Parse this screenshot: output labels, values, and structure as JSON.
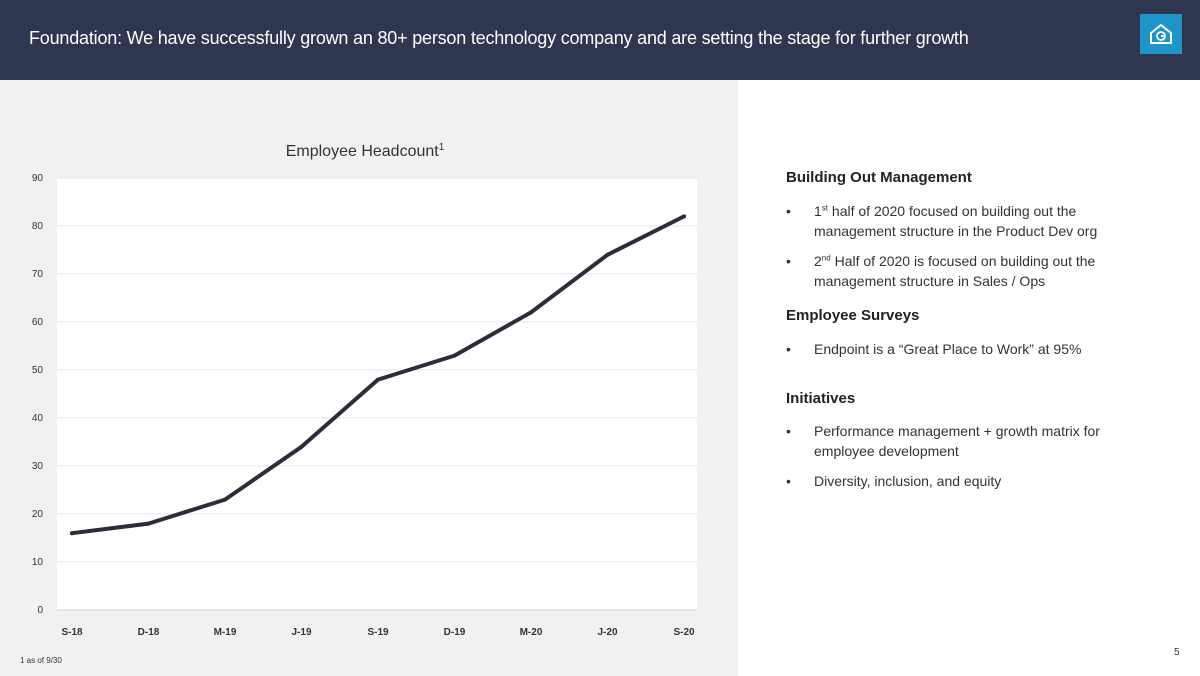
{
  "header": {
    "title": "Foundation: We have successfully grown an 80+ person technology company and are setting the stage for further growth",
    "logo_icon": "house-logo-icon",
    "colors": {
      "background": "#2e3650",
      "logo": "#1f94c9"
    }
  },
  "chart_data": {
    "type": "line",
    "title": "Employee Headcount",
    "title_superscript": "1",
    "categories": [
      "S-18",
      "D-18",
      "M-19",
      "J-19",
      "S-19",
      "D-19",
      "M-20",
      "J-20",
      "S-20"
    ],
    "series": [
      {
        "values": [
          16,
          18,
          23,
          34,
          48,
          53,
          62,
          74,
          82
        ],
        "color": "#2b2d3a"
      }
    ],
    "ylim": [
      0,
      90
    ],
    "yticks": [
      0,
      10,
      20,
      30,
      40,
      50,
      60,
      70,
      80,
      90
    ],
    "grid": true
  },
  "footnote": "1 as of 9/30",
  "page_number": "5",
  "sections": [
    {
      "heading": "Building Out Management",
      "bullets": [
        {
          "ordinal": "1",
          "sup": "st",
          "text": " half of 2020 focused on building out the management structure in the Product Dev org"
        },
        {
          "ordinal": "2",
          "sup": "nd",
          "text": " Half of 2020 is focused on building out the management structure in Sales / Ops"
        }
      ]
    },
    {
      "heading": "Employee Surveys",
      "bullets": [
        {
          "text": "Endpoint is a “Great Place to Work” at 95%"
        }
      ]
    },
    {
      "heading": "Initiatives",
      "bullets": [
        {
          "text": "Performance management + growth matrix for employee development"
        },
        {
          "text": "Diversity, inclusion, and equity"
        }
      ]
    }
  ],
  "bullet_char": "•"
}
